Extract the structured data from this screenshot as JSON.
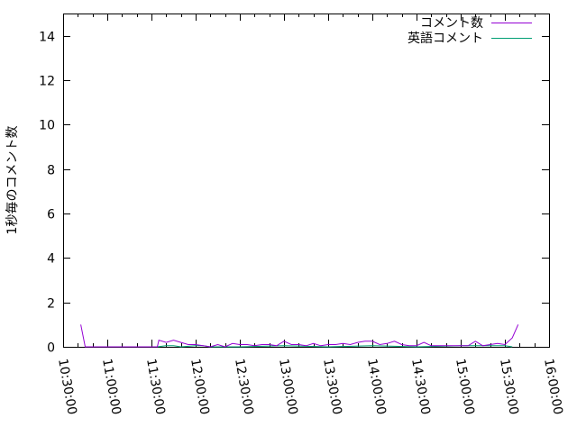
{
  "chart_data": {
    "type": "line",
    "title": "",
    "xlabel": "",
    "ylabel": "1秒毎のコメント数",
    "ylim": [
      0,
      15
    ],
    "xlim": [
      "10:30:00",
      "16:00:00"
    ],
    "yticks": [
      "0",
      "2",
      "4",
      "6",
      "8",
      "10",
      "12",
      "14"
    ],
    "xticks": [
      "10:30:00",
      "11:00:00",
      "11:30:00",
      "12:00:00",
      "12:30:00",
      "13:00:00",
      "13:30:00",
      "14:00:00",
      "14:30:00",
      "15:00:00",
      "15:30:00",
      "16:00:00"
    ],
    "grid": false,
    "legend_position": "top-right",
    "series": [
      {
        "name": "コメント数",
        "color": "#9400d3",
        "x": [
          "10:42",
          "10:45",
          "11:34",
          "11:35",
          "11:40",
          "11:45",
          "11:50",
          "11:55",
          "12:00",
          "12:05",
          "12:10",
          "12:15",
          "12:20",
          "12:25",
          "12:30",
          "12:35",
          "12:40",
          "12:45",
          "12:50",
          "12:55",
          "13:00",
          "13:05",
          "13:10",
          "13:15",
          "13:20",
          "13:25",
          "13:30",
          "13:35",
          "13:40",
          "13:45",
          "13:50",
          "13:55",
          "14:00",
          "14:05",
          "14:10",
          "14:15",
          "14:20",
          "14:25",
          "14:30",
          "14:35",
          "14:40",
          "14:45",
          "14:50",
          "14:55",
          "15:00",
          "15:05",
          "15:10",
          "15:15",
          "15:20",
          "15:25",
          "15:30",
          "15:35",
          "15:39"
        ],
        "y": [
          1,
          0,
          0,
          0.3,
          0.2,
          0.3,
          0.2,
          0.1,
          0.1,
          0.05,
          0,
          0.1,
          0,
          0.15,
          0.1,
          0.1,
          0.05,
          0.1,
          0.1,
          0.05,
          0.25,
          0.1,
          0.1,
          0.05,
          0.15,
          0.05,
          0.1,
          0.1,
          0.15,
          0.1,
          0.2,
          0.25,
          0.25,
          0.1,
          0.15,
          0.25,
          0.1,
          0.05,
          0.05,
          0.2,
          0.05,
          0.05,
          0.05,
          0.05,
          0.05,
          0.05,
          0.25,
          0.05,
          0.1,
          0.15,
          0.1,
          0.4,
          1
        ]
      },
      {
        "name": "英語コメント",
        "color": "#009e73",
        "x": [
          "11:34",
          "11:40",
          "11:45",
          "11:50",
          "12:00",
          "12:05",
          "12:10",
          "12:30",
          "13:00",
          "13:30",
          "14:00",
          "14:30",
          "15:00",
          "15:30",
          "15:35"
        ],
        "y": [
          0,
          0.05,
          0.05,
          0,
          0.05,
          0.05,
          0,
          0,
          0.05,
          0,
          0.05,
          0,
          0.05,
          0.05,
          0
        ]
      }
    ]
  }
}
